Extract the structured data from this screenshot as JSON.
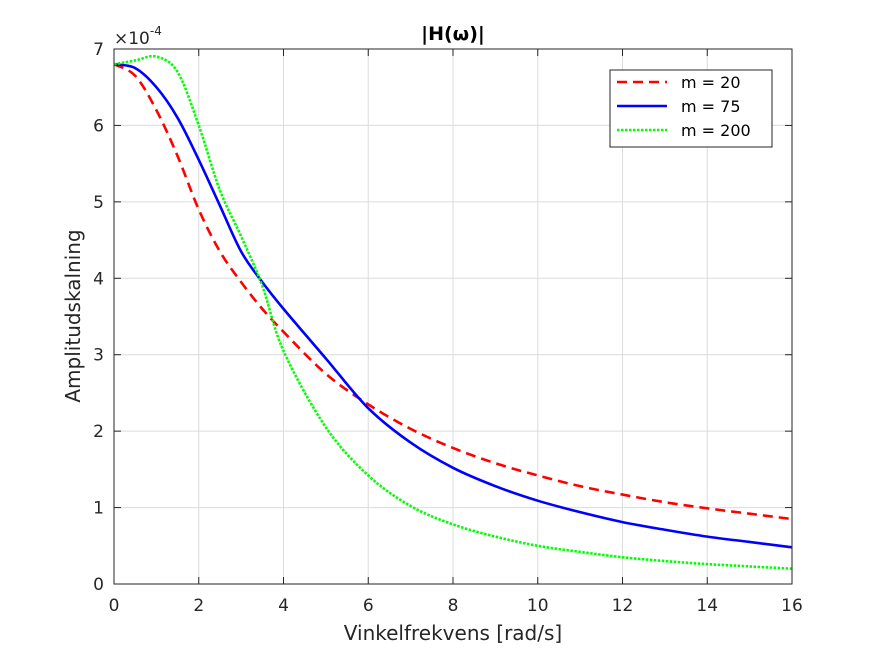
{
  "chart_data": {
    "type": "line",
    "title": "|H(ω)|",
    "xlabel": "Vinkelfrekvens [rad/s]",
    "ylabel": "Amplitudskalning",
    "xlim": [
      0,
      16
    ],
    "ylim": [
      0,
      7
    ],
    "x_ticks": [
      "0",
      "2",
      "4",
      "6",
      "8",
      "10",
      "12",
      "14",
      "16"
    ],
    "y_ticks": [
      "0",
      "1",
      "2",
      "3",
      "4",
      "5",
      "6",
      "7"
    ],
    "y_exponent_base": "×10",
    "y_exponent_power": "-4",
    "grid": true,
    "legend_position": "top-right",
    "x": [
      0,
      0.5,
      1,
      1.5,
      2,
      2.5,
      3,
      3.5,
      4,
      5,
      6,
      7,
      8,
      9,
      10,
      11,
      12,
      13,
      14,
      15,
      16
    ],
    "series": [
      {
        "name": "m = 20",
        "color": "#ff0000",
        "dash": "dashed",
        "values": [
          6.8,
          6.65,
          6.2,
          5.6,
          4.9,
          4.35,
          3.95,
          3.6,
          3.3,
          2.75,
          2.35,
          2.03,
          1.78,
          1.58,
          1.42,
          1.28,
          1.17,
          1.07,
          0.99,
          0.92,
          0.85
        ]
      },
      {
        "name": "m = 75",
        "color": "#0000ff",
        "dash": "solid",
        "values": [
          6.8,
          6.75,
          6.5,
          6.1,
          5.55,
          4.95,
          4.35,
          3.95,
          3.6,
          2.95,
          2.3,
          1.85,
          1.52,
          1.28,
          1.09,
          0.94,
          0.81,
          0.71,
          0.62,
          0.55,
          0.48
        ]
      },
      {
        "name": "m = 200",
        "color": "#00ff00",
        "dash": "dotted",
        "values": [
          6.8,
          6.85,
          6.9,
          6.7,
          6.0,
          5.15,
          4.55,
          3.9,
          3.05,
          2.05,
          1.42,
          1.02,
          0.78,
          0.62,
          0.5,
          0.42,
          0.35,
          0.3,
          0.26,
          0.23,
          0.2
        ]
      }
    ]
  }
}
